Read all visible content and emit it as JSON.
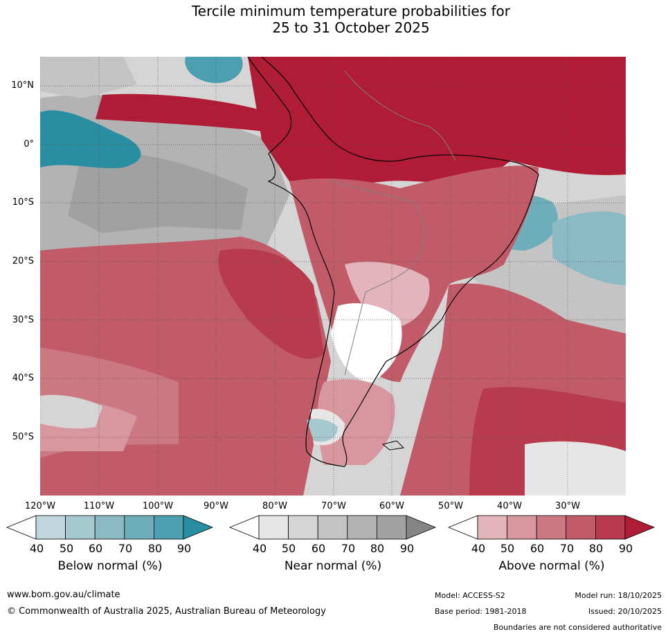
{
  "title_line1": "Tercile minimum temperature probabilities for",
  "title_line2": "25 to 31 October 2025",
  "lat_labels": [
    "10°N",
    "0°",
    "10°S",
    "20°S",
    "30°S",
    "40°S",
    "50°S"
  ],
  "lon_labels": [
    "120°W",
    "110°W",
    "100°W",
    "90°W",
    "80°W",
    "70°W",
    "60°W",
    "50°W",
    "40°W",
    "30°W"
  ],
  "colorbars": [
    {
      "name": "below",
      "label": "Below normal (%)",
      "ticks": [
        "40",
        "50",
        "60",
        "70",
        "80",
        "90"
      ],
      "colors": [
        "#ffffff",
        "#bfd6dc",
        "#a6c8cf",
        "#8cbac4",
        "#6eaebb",
        "#4b9fb0",
        "#2a8ea3"
      ]
    },
    {
      "name": "near",
      "label": "Near normal (%)",
      "ticks": [
        "40",
        "50",
        "60",
        "70",
        "80",
        "90"
      ],
      "colors": [
        "#ffffff",
        "#e6e6e6",
        "#d5d5d5",
        "#c4c4c4",
        "#b3b3b3",
        "#a1a1a1",
        "#858585"
      ]
    },
    {
      "name": "above",
      "label": "Above normal (%)",
      "ticks": [
        "40",
        "50",
        "60",
        "70",
        "80",
        "90"
      ],
      "colors": [
        "#ffffff",
        "#e3b4bb",
        "#d8979f",
        "#cc7883",
        "#c15b68",
        "#b83a4d",
        "#b01c36"
      ]
    }
  ],
  "footer": {
    "website": "www.bom.gov.au/climate",
    "copyright": "© Commonwealth of Australia 2025, Australian Bureau of Meteorology",
    "model": "Model: ACCESS-S2",
    "model_run": "Model run: 18/10/2025",
    "base_period": "Base period: 1981-2018",
    "issued": "Issued: 20/10/2025",
    "boundaries": "Boundaries are not considered authoritative"
  }
}
